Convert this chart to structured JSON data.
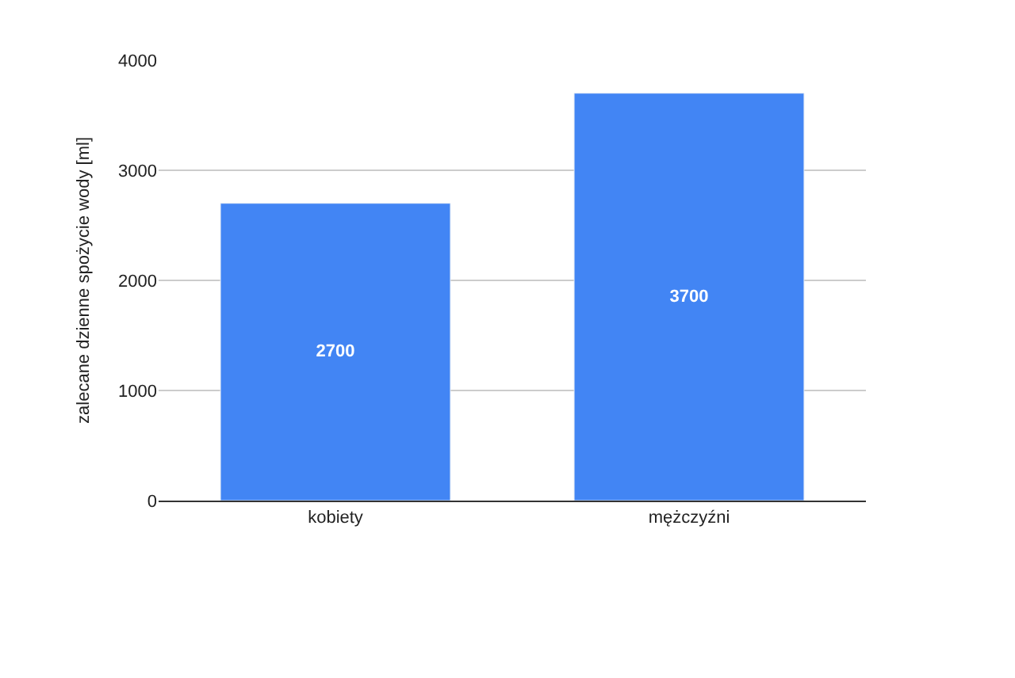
{
  "chart_data": {
    "type": "bar",
    "ylabel": "zalecane dzienne spożycie wody [ml]",
    "categories": [
      "kobiety",
      "mężczyźni"
    ],
    "values": [
      2700,
      3700
    ],
    "color": "#4285f4",
    "ylim": [
      0,
      4000
    ],
    "yticks": [
      0,
      1000,
      2000,
      3000,
      4000
    ],
    "grid": "y",
    "data_labels": true,
    "legend": false
  }
}
